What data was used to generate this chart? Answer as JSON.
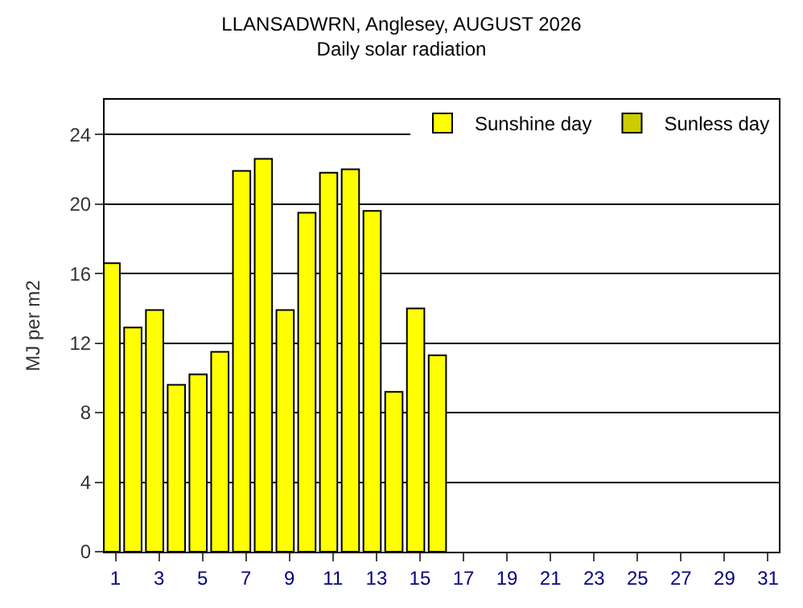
{
  "chart_data": {
    "type": "bar",
    "title": "LLANSADWRN, Anglesey, AUGUST 2026",
    "subtitle": "Daily solar radiation",
    "ylabel": "MJ per m2",
    "x": [
      1,
      2,
      3,
      4,
      5,
      6,
      7,
      8,
      9,
      10,
      11,
      12,
      13,
      14,
      15,
      16
    ],
    "series": [
      {
        "name": "Sunshine day",
        "color": "#ffff00",
        "values": [
          16.6,
          12.9,
          13.9,
          9.6,
          10.2,
          11.5,
          21.9,
          22.6,
          13.9,
          19.5,
          21.8,
          22.0,
          19.6,
          9.2,
          14.0,
          11.3
        ]
      },
      {
        "name": "Sunless day",
        "color": "#cccc00",
        "values": [
          null,
          null,
          null,
          null,
          null,
          null,
          null,
          null,
          null,
          null,
          null,
          null,
          null,
          null,
          null,
          null
        ]
      }
    ],
    "xlim": [
      0.5,
      31.5
    ],
    "xticks": [
      1,
      3,
      5,
      7,
      9,
      11,
      13,
      15,
      17,
      19,
      21,
      23,
      25,
      27,
      29,
      31
    ],
    "ylim": [
      0,
      26
    ],
    "yticks": [
      0,
      4,
      8,
      12,
      16,
      20,
      24
    ],
    "grid": "y",
    "legend": "top right"
  }
}
